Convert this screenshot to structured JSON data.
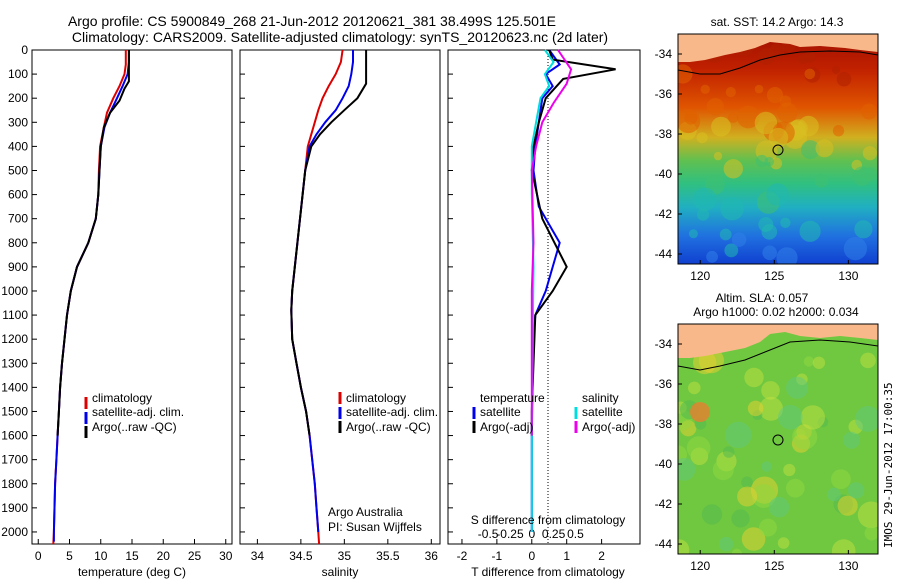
{
  "header": {
    "line1": "Argo profile: CS 5900849_268 21-Jun-2012 20120621_381 38.499S 125.501E",
    "line2": "Climatology: CARS2009. Satellite-adjusted climatology: synTS_20120623.nc (2d later)"
  },
  "colors": {
    "climatology": "#dd0000",
    "satellite": "#0000ee",
    "argo": "#000000",
    "sal_satellite": "#00dddd",
    "sal_argo": "#ee00ee"
  },
  "footer": {
    "stamp": "IMOS 29-Jun-2012 17:00:35"
  },
  "chart_data": [
    {
      "id": "temperature",
      "type": "line",
      "xlabel": "temperature (deg C)",
      "ylabel": "",
      "xlim": [
        -1,
        31
      ],
      "ylim": [
        2050,
        0
      ],
      "xticks": [
        0,
        5,
        10,
        15,
        20,
        25,
        30
      ],
      "xtick_labels": [
        "0",
        "5",
        "10",
        "15",
        "20",
        "25",
        "30"
      ],
      "yticks": [
        0,
        100,
        200,
        300,
        400,
        500,
        600,
        700,
        800,
        900,
        1000,
        1100,
        1200,
        1300,
        1400,
        1500,
        1600,
        1700,
        1800,
        1900,
        2000
      ],
      "ytick_labels": [
        "0",
        "100",
        "200",
        "300",
        "400",
        "500",
        "600",
        "700",
        "800",
        "900",
        "1000",
        "1100",
        "1200",
        "1300",
        "1400",
        "1500",
        "1600",
        "1700",
        "1800",
        "1900",
        "2000"
      ],
      "series": [
        {
          "name": "climatology",
          "color": "#dd0000",
          "points": [
            [
              14.0,
              0
            ],
            [
              14.0,
              60
            ],
            [
              13.8,
              100
            ],
            [
              13.0,
              150
            ],
            [
              12.0,
              200
            ],
            [
              11.0,
              260
            ],
            [
              10.5,
              320
            ],
            [
              9.9,
              400
            ],
            [
              9.7,
              500
            ],
            [
              9.6,
              600
            ],
            [
              9.2,
              700
            ],
            [
              8.0,
              800
            ],
            [
              6.2,
              900
            ],
            [
              5.2,
              1000
            ],
            [
              4.6,
              1100
            ],
            [
              4.2,
              1200
            ],
            [
              3.8,
              1300
            ],
            [
              3.5,
              1400
            ],
            [
              3.3,
              1500
            ],
            [
              3.1,
              1600
            ],
            [
              2.9,
              1700
            ],
            [
              2.7,
              1800
            ],
            [
              2.6,
              1900
            ],
            [
              2.5,
              2000
            ],
            [
              2.4,
              2050
            ]
          ]
        },
        {
          "name": "satellite-adj. clim.",
          "color": "#0000ee",
          "points": [
            [
              14.5,
              0
            ],
            [
              14.5,
              50
            ],
            [
              14.3,
              100
            ],
            [
              13.5,
              150
            ],
            [
              12.6,
              200
            ],
            [
              11.5,
              260
            ],
            [
              10.6,
              320
            ],
            [
              10.0,
              400
            ],
            [
              9.8,
              500
            ],
            [
              9.6,
              600
            ],
            [
              9.2,
              700
            ],
            [
              8.0,
              800
            ],
            [
              6.2,
              900
            ],
            [
              5.2,
              1000
            ],
            [
              4.6,
              1100
            ],
            [
              4.2,
              1200
            ],
            [
              3.8,
              1300
            ],
            [
              3.5,
              1400
            ],
            [
              3.3,
              1500
            ],
            [
              3.1,
              1600
            ],
            [
              2.9,
              1700
            ],
            [
              2.7,
              1800
            ],
            [
              2.6,
              1900
            ],
            [
              2.5,
              2000
            ],
            [
              2.5,
              2040
            ]
          ]
        },
        {
          "name": "Argo(..raw -QC)",
          "color": "#000000",
          "points": [
            [
              14.5,
              0
            ],
            [
              14.5,
              130
            ],
            [
              13.8,
              160
            ],
            [
              13.0,
              210
            ],
            [
              11.5,
              260
            ],
            [
              10.5,
              320
            ],
            [
              10.0,
              400
            ],
            [
              9.8,
              500
            ],
            [
              9.6,
              600
            ],
            [
              9.2,
              700
            ],
            [
              8.0,
              800
            ],
            [
              6.2,
              900
            ],
            [
              5.2,
              1000
            ],
            [
              4.6,
              1100
            ],
            [
              4.2,
              1200
            ],
            [
              3.8,
              1300
            ],
            [
              3.5,
              1400
            ],
            [
              3.3,
              1500
            ],
            [
              3.1,
              1600
            ]
          ]
        }
      ],
      "legend": [
        "climatology",
        "satellite-adj. clim.",
        "Argo(..raw -QC)"
      ]
    },
    {
      "id": "salinity",
      "type": "line",
      "xlabel": "salinity",
      "xlim": [
        33.8,
        36.1
      ],
      "ylim": [
        2050,
        0
      ],
      "xticks": [
        34,
        34.5,
        35,
        35.5,
        36
      ],
      "xtick_labels": [
        "34",
        "34.5",
        "35",
        "35.5",
        "36"
      ],
      "series": [
        {
          "name": "climatology",
          "color": "#dd0000",
          "points": [
            [
              34.98,
              0
            ],
            [
              34.96,
              50
            ],
            [
              34.9,
              100
            ],
            [
              34.82,
              150
            ],
            [
              34.75,
              200
            ],
            [
              34.7,
              250
            ],
            [
              34.66,
              300
            ],
            [
              34.62,
              350
            ],
            [
              34.58,
              400
            ],
            [
              34.55,
              500
            ],
            [
              34.52,
              600
            ],
            [
              34.49,
              700
            ],
            [
              34.46,
              800
            ],
            [
              34.43,
              900
            ],
            [
              34.4,
              1000
            ],
            [
              34.39,
              1080
            ],
            [
              34.4,
              1200
            ],
            [
              34.45,
              1300
            ],
            [
              34.5,
              1400
            ],
            [
              34.56,
              1500
            ],
            [
              34.6,
              1600
            ],
            [
              34.63,
              1700
            ],
            [
              34.66,
              1800
            ],
            [
              34.68,
              1900
            ],
            [
              34.7,
              2000
            ],
            [
              34.71,
              2050
            ]
          ]
        },
        {
          "name": "satellite-adj. clim.",
          "color": "#0000ee",
          "points": [
            [
              35.1,
              0
            ],
            [
              35.1,
              50
            ],
            [
              35.08,
              100
            ],
            [
              35.05,
              150
            ],
            [
              34.98,
              200
            ],
            [
              34.9,
              250
            ],
            [
              34.78,
              300
            ],
            [
              34.68,
              350
            ],
            [
              34.6,
              400
            ],
            [
              34.55,
              500
            ],
            [
              34.52,
              600
            ],
            [
              34.49,
              700
            ],
            [
              34.46,
              800
            ],
            [
              34.43,
              900
            ],
            [
              34.4,
              1000
            ],
            [
              34.39,
              1080
            ],
            [
              34.4,
              1200
            ],
            [
              34.45,
              1300
            ],
            [
              34.5,
              1400
            ],
            [
              34.56,
              1500
            ],
            [
              34.6,
              1600
            ],
            [
              34.63,
              1700
            ],
            [
              34.66,
              1800
            ],
            [
              34.68,
              1900
            ],
            [
              34.7,
              2000
            ]
          ]
        },
        {
          "name": "Argo(..raw -QC)",
          "color": "#000000",
          "points": [
            [
              35.25,
              0
            ],
            [
              35.25,
              140
            ],
            [
              35.15,
              200
            ],
            [
              35.0,
              250
            ],
            [
              34.85,
              300
            ],
            [
              34.72,
              350
            ],
            [
              34.62,
              400
            ],
            [
              34.55,
              500
            ],
            [
              34.52,
              600
            ],
            [
              34.49,
              700
            ],
            [
              34.46,
              800
            ],
            [
              34.43,
              900
            ],
            [
              34.4,
              1000
            ],
            [
              34.39,
              1080
            ],
            [
              34.4,
              1200
            ],
            [
              34.45,
              1300
            ],
            [
              34.5,
              1400
            ],
            [
              34.56,
              1500
            ],
            [
              34.6,
              1600
            ]
          ]
        }
      ],
      "legend": [
        "climatology",
        "satellite-adj. clim.",
        "Argo(..raw -QC)"
      ],
      "annotation": [
        "Argo Australia",
        "PI: Susan Wijffels"
      ]
    },
    {
      "id": "difference",
      "type": "line",
      "xlabel": "T difference from climatology",
      "xlabel_top": "S difference from climatology",
      "xlim": [
        -2.4,
        3.1
      ],
      "ylim": [
        2050,
        0
      ],
      "xticks": [
        -2,
        -1,
        0,
        1,
        2
      ],
      "xtick_labels": [
        "-2",
        "-1",
        "0",
        "1",
        "2"
      ],
      "sticks": [
        -0.5,
        -0.25,
        0,
        0.25,
        0.5
      ],
      "stick_labels": [
        "-0.5",
        "-0.25",
        "0",
        "0.25",
        "0.5"
      ],
      "series": [
        {
          "name": "T satellite",
          "color": "#0000ee",
          "points": [
            [
              0.5,
              0
            ],
            [
              0.8,
              60
            ],
            [
              0.4,
              100
            ],
            [
              0.6,
              150
            ],
            [
              0.3,
              200
            ],
            [
              0.2,
              300
            ],
            [
              0.1,
              400
            ],
            [
              0.05,
              500
            ],
            [
              0.2,
              650
            ],
            [
              0.8,
              800
            ],
            [
              0.6,
              900
            ],
            [
              0.4,
              1000
            ],
            [
              0.1,
              1100
            ],
            [
              0.05,
              1200
            ],
            [
              0.02,
              1400
            ],
            [
              0.0,
              1600
            ],
            [
              0.0,
              1800
            ],
            [
              0.0,
              2000
            ]
          ]
        },
        {
          "name": "T Argo(-adj)",
          "color": "#000000",
          "points": [
            [
              0.5,
              0
            ],
            [
              0.6,
              40
            ],
            [
              2.4,
              80
            ],
            [
              0.9,
              120
            ],
            [
              0.4,
              200
            ],
            [
              0.2,
              300
            ],
            [
              0.05,
              400
            ],
            [
              0.0,
              500
            ],
            [
              0.3,
              700
            ],
            [
              1.0,
              900
            ],
            [
              0.6,
              1000
            ],
            [
              0.1,
              1100
            ],
            [
              0.05,
              1300
            ],
            [
              0.0,
              1500
            ],
            [
              0.0,
              1600
            ]
          ]
        },
        {
          "name": "S satellite",
          "color": "#00dddd",
          "points": [
            [
              0.15,
              0
            ],
            [
              0.25,
              50
            ],
            [
              0.15,
              100
            ],
            [
              0.2,
              150
            ],
            [
              0.1,
              200
            ],
            [
              0.05,
              300
            ],
            [
              0.0,
              400
            ],
            [
              0.0,
              600
            ],
            [
              0.02,
              900
            ],
            [
              0.01,
              1200
            ],
            [
              0.0,
              1600
            ],
            [
              0.0,
              2000
            ]
          ]
        },
        {
          "name": "S Argo(-adj)",
          "color": "#ee00ee",
          "points": [
            [
              0.3,
              0
            ],
            [
              0.45,
              80
            ],
            [
              0.4,
              140
            ],
            [
              0.25,
              220
            ],
            [
              0.12,
              300
            ],
            [
              0.05,
              400
            ],
            [
              0.0,
              500
            ],
            [
              0.02,
              800
            ],
            [
              0.0,
              1000
            ],
            [
              0.0,
              1600
            ]
          ]
        }
      ],
      "legend_temperature": [
        "temperature",
        "satellite",
        "Argo(-adj)"
      ],
      "legend_salinity": [
        "salinity",
        "satellite",
        "Argo(-adj)"
      ]
    },
    {
      "id": "sst_map",
      "type": "heatmap",
      "title": "sat. SST: 14.2 Argo: 14.3",
      "xlim": [
        118.5,
        132
      ],
      "ylim": [
        -44.5,
        -33
      ],
      "xticks": [
        120,
        125,
        130
      ],
      "yticks": [
        -34,
        -36,
        -38,
        -40,
        -42,
        -44
      ],
      "marker": [
        125.5,
        -38.5
      ]
    },
    {
      "id": "sla_map",
      "type": "heatmap",
      "title": "Altim. SLA: 0.057",
      "subtitle": "Argo h1000: 0.02 h2000: 0.034",
      "xlim": [
        118.5,
        132
      ],
      "ylim": [
        -44.5,
        -33
      ],
      "xticks": [
        120,
        125,
        130
      ],
      "yticks": [
        -34,
        -36,
        -38,
        -40,
        -42,
        -44
      ],
      "marker": [
        125.5,
        -38.5
      ]
    }
  ]
}
